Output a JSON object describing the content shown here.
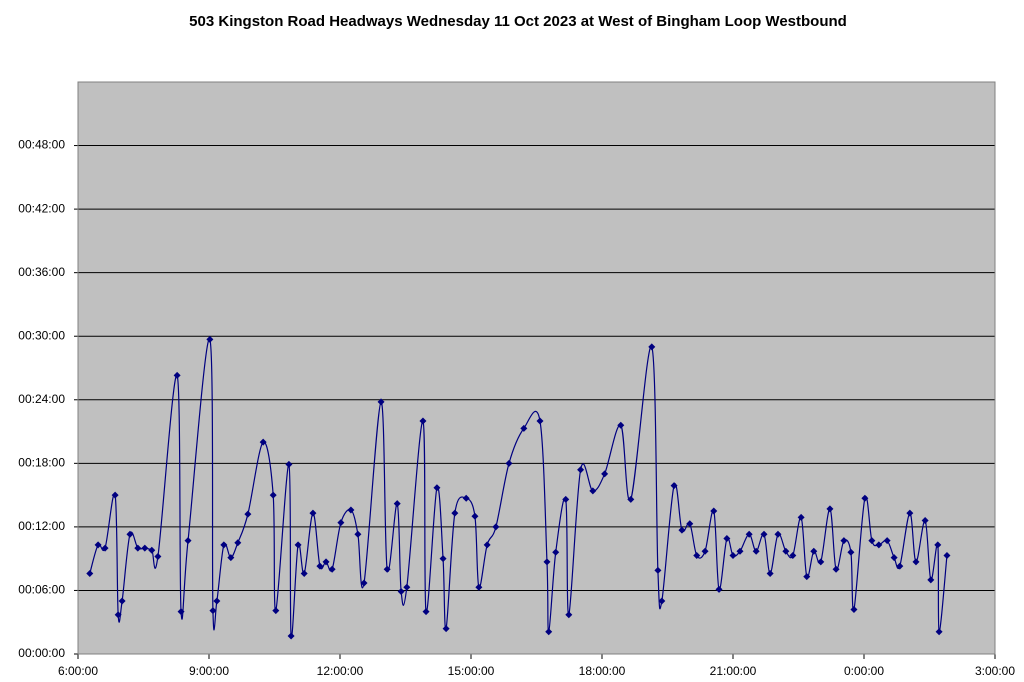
{
  "chart_data": {
    "type": "line",
    "title": "503 Kingston Road Headways Wednesday 11 Oct 2023 at West of Bingham Loop Westbound",
    "color": "#000080",
    "smooth": true,
    "grid": true,
    "xlim": [
      6,
      27
    ],
    "xticks": [
      {
        "value": 6,
        "label": "6:00:00"
      },
      {
        "value": 9,
        "label": "9:00:00"
      },
      {
        "value": 12,
        "label": "12:00:00"
      },
      {
        "value": 15,
        "label": "15:00:00"
      },
      {
        "value": 18,
        "label": "18:00:00"
      },
      {
        "value": 21,
        "label": "21:00:00"
      },
      {
        "value": 24,
        "label": "0:00:00"
      },
      {
        "value": 27,
        "label": "3:00:00"
      }
    ],
    "ylim": [
      0,
      54
    ],
    "yticks": [
      {
        "value": 0,
        "label": "00:00:00"
      },
      {
        "value": 6,
        "label": "00:06:00"
      },
      {
        "value": 12,
        "label": "00:12:00"
      },
      {
        "value": 18,
        "label": "00:18:00"
      },
      {
        "value": 24,
        "label": "00:24:00"
      },
      {
        "value": 30,
        "label": "00:30:00"
      },
      {
        "value": 36,
        "label": "00:36:00"
      },
      {
        "value": 42,
        "label": "00:42:00"
      },
      {
        "value": 48,
        "label": "00:48:00"
      }
    ],
    "x": [
      6.27,
      6.46,
      6.62,
      6.85,
      6.92,
      7.01,
      7.19,
      7.37,
      7.53,
      7.69,
      7.83,
      8.27,
      8.36,
      8.52,
      9.02,
      9.09,
      9.18,
      9.34,
      9.5,
      9.66,
      9.89,
      10.24,
      10.47,
      10.53,
      10.83,
      10.88,
      11.04,
      11.18,
      11.38,
      11.54,
      11.68,
      11.82,
      12.02,
      12.25,
      12.41,
      12.55,
      12.94,
      13.08,
      13.31,
      13.4,
      13.53,
      13.9,
      13.97,
      14.22,
      14.36,
      14.43,
      14.63,
      14.89,
      15.09,
      15.18,
      15.37,
      15.57,
      15.87,
      16.21,
      16.58,
      16.74,
      16.78,
      16.94,
      17.17,
      17.24,
      17.51,
      17.79,
      18.06,
      18.43,
      18.66,
      19.14,
      19.28,
      19.37,
      19.65,
      19.83,
      20.01,
      20.17,
      20.36,
      20.56,
      20.68,
      20.86,
      21.0,
      21.16,
      21.37,
      21.53,
      21.71,
      21.85,
      22.03,
      22.21,
      22.37,
      22.56,
      22.69,
      22.85,
      23.01,
      23.22,
      23.36,
      23.54,
      23.7,
      23.77,
      24.02,
      24.18,
      24.34,
      24.53,
      24.69,
      24.82,
      25.05,
      25.19,
      25.4,
      25.53,
      25.69,
      25.72,
      25.9
    ],
    "values": [
      7.6,
      10.3,
      10.0,
      15.0,
      3.7,
      5.0,
      11.3,
      10.0,
      10.0,
      9.8,
      9.2,
      26.3,
      4.0,
      10.7,
      29.7,
      4.1,
      5.0,
      10.3,
      9.1,
      10.5,
      13.2,
      20.0,
      15.0,
      4.1,
      17.9,
      1.7,
      10.3,
      7.6,
      13.3,
      8.3,
      8.7,
      8.0,
      12.4,
      13.6,
      11.3,
      6.7,
      23.8,
      8.0,
      14.2,
      5.9,
      6.3,
      22.0,
      4.0,
      15.7,
      9.0,
      2.4,
      13.3,
      14.7,
      13.0,
      6.3,
      10.3,
      12.0,
      18.0,
      21.3,
      22.0,
      8.7,
      2.1,
      9.6,
      14.6,
      3.7,
      17.4,
      15.4,
      17.0,
      21.6,
      14.6,
      29.0,
      7.9,
      5.0,
      15.9,
      11.7,
      12.3,
      9.3,
      9.7,
      13.5,
      6.1,
      10.9,
      9.3,
      9.7,
      11.3,
      9.7,
      11.3,
      7.6,
      11.3,
      9.7,
      9.3,
      12.9,
      7.3,
      9.7,
      8.7,
      13.7,
      8.0,
      10.7,
      9.6,
      4.2,
      14.7,
      10.7,
      10.3,
      10.7,
      9.1,
      8.3,
      13.3,
      8.7,
      12.6,
      7.0,
      10.3,
      2.1,
      9.3
    ]
  }
}
